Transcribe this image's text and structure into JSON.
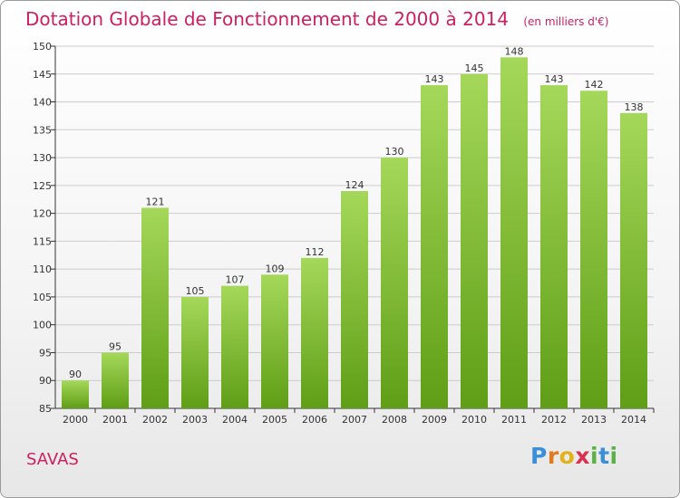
{
  "title": "Dotation Globale de Fonctionnement de 2000 à 2014",
  "subtitle": "(en milliers d'€)",
  "town": "SAVAS",
  "brand": {
    "letters": [
      "P",
      "r",
      "o",
      "x",
      "i",
      "t",
      "i"
    ],
    "colors": [
      "#3a8fd8",
      "#e07a1c",
      "#e2b21a",
      "#d9304f",
      "#59b243",
      "#3a8fd8",
      "#59b243"
    ]
  },
  "colors": {
    "accent": "#cc2060",
    "bar_top": "#a5d85a",
    "bar_bottom": "#5f9e16",
    "grid": "#cccccc",
    "axis": "#333333"
  },
  "chart_data": {
    "type": "bar",
    "categories": [
      "2000",
      "2001",
      "2002",
      "2003",
      "2004",
      "2005",
      "2006",
      "2007",
      "2008",
      "2009",
      "2010",
      "2011",
      "2012",
      "2013",
      "2014"
    ],
    "values": [
      90,
      95,
      121,
      105,
      107,
      109,
      112,
      124,
      130,
      143,
      145,
      148,
      143,
      142,
      138
    ],
    "title": "Dotation Globale de Fonctionnement de 2000 à 2014",
    "subtitle": "(en milliers d'€)",
    "ylim": [
      85,
      150
    ],
    "yticks": [
      85,
      90,
      95,
      100,
      105,
      110,
      115,
      120,
      125,
      130,
      135,
      140,
      145,
      150
    ],
    "grid": true,
    "data_labels": true
  }
}
